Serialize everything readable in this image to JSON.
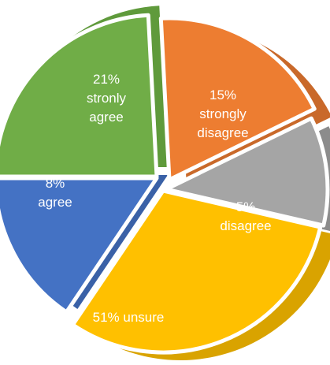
{
  "chart_data": {
    "type": "pie",
    "title": "",
    "legend": "none",
    "slices": [
      {
        "label_lines": [
          "21%",
          "stronly",
          "agree"
        ],
        "value": 21,
        "category": "stronly agree",
        "color": "#70ad47",
        "side_color": "#5f9a3b"
      },
      {
        "label_lines": [
          "15%",
          "strongly",
          "disagree"
        ],
        "value": 15,
        "category": "strongly disagree",
        "color": "#ed7d31",
        "side_color": "#c9692a",
        "label_color": "#f6b27a"
      },
      {
        "label_lines": [
          "5%",
          "disagree"
        ],
        "value": 5,
        "category": "disagree",
        "color": "#a5a5a5",
        "side_color": "#8c8c8c"
      },
      {
        "label_lines": [
          "51%  unsure"
        ],
        "value": 51,
        "category": "unsure",
        "color": "#ffc000",
        "side_color": "#d9a300"
      },
      {
        "label_lines": [
          "8%",
          "agree"
        ],
        "value": 8,
        "category": "agree",
        "color": "#4472c4",
        "side_color": "#3a61a7"
      }
    ]
  }
}
